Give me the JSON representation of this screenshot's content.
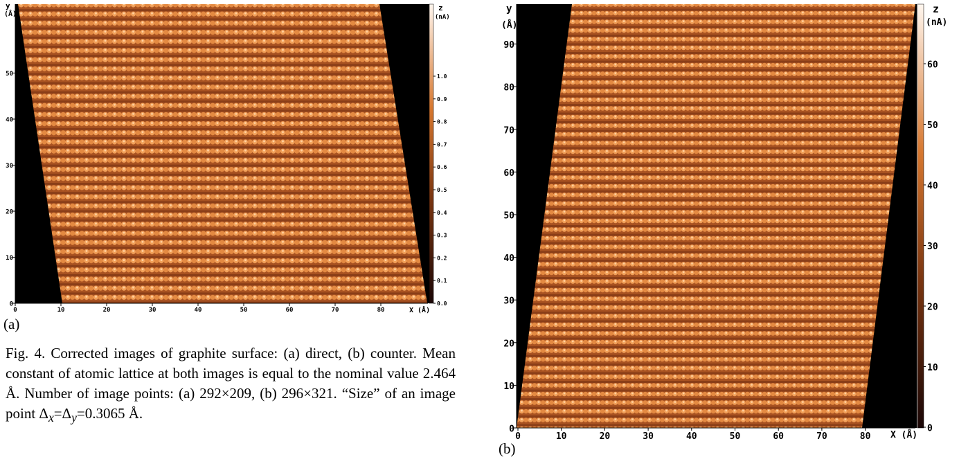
{
  "figure": {
    "panels": [
      {
        "label": "(a)",
        "x_axis_label": "X (Å)",
        "y_axis_label_top": "y",
        "y_axis_label_unit": "(Å)",
        "x_ticks": [
          "0",
          "10",
          "20",
          "30",
          "40",
          "50",
          "60",
          "70",
          "80"
        ],
        "y_ticks": [
          "0",
          "10",
          "20",
          "30",
          "40",
          "50"
        ],
        "colorbar_label": "z",
        "colorbar_unit": "(nA)",
        "colorbar_ticks": [
          "0.0",
          "0.1",
          "0.2",
          "0.3",
          "0.4",
          "0.5",
          "0.6",
          "0.7",
          "0.8",
          "0.9",
          "1.0"
        ]
      },
      {
        "label": "(b)",
        "x_axis_label": "X (Å)",
        "y_axis_label_top": "y",
        "y_axis_label_unit": "(Å)",
        "x_ticks": [
          "0",
          "10",
          "20",
          "30",
          "40",
          "50",
          "60",
          "70",
          "80"
        ],
        "y_ticks": [
          "0",
          "10",
          "20",
          "30",
          "40",
          "50",
          "60",
          "70",
          "80",
          "90"
        ],
        "colorbar_label": "z",
        "colorbar_unit": "(nA)",
        "colorbar_ticks": [
          "0",
          "10",
          "20",
          "30",
          "40",
          "50",
          "60"
        ]
      }
    ],
    "caption": {
      "prefix": "Fig. 4. Corrected images of graphite surface: (a) direct, (b) counter. Mean constant of atomic lattice at both images is equal to the nominal value 2.464 Å. Number of image points: (a) 292×209, (b) 296×321. “Size” of an image point Δ",
      "sub_x": "x",
      "mid": "=Δ",
      "sub_y": "y",
      "suffix": "=0.3065 Å."
    },
    "colors": {
      "low": "#1a0606",
      "mid": "#d6772f",
      "high": "#fff6ee",
      "masked": "#000000"
    }
  }
}
